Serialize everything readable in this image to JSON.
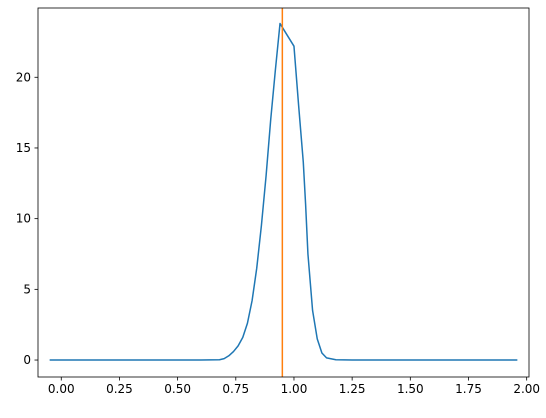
{
  "chart_data": {
    "type": "line",
    "title": "",
    "xlabel": "",
    "ylabel": "",
    "xlim": [
      -0.1,
      2.01
    ],
    "ylim": [
      -1.2,
      24.9
    ],
    "grid": false,
    "legend": "none",
    "x_ticks": [
      0.0,
      0.25,
      0.5,
      0.75,
      1.0,
      1.25,
      1.5,
      1.75,
      2.0
    ],
    "x_tick_labels": [
      "0.00",
      "0.25",
      "0.50",
      "0.75",
      "1.00",
      "1.25",
      "1.50",
      "1.75",
      "2.00"
    ],
    "y_ticks": [
      0,
      5,
      10,
      15,
      20
    ],
    "y_tick_labels": [
      "0",
      "5",
      "10",
      "15",
      "20"
    ],
    "series": [
      {
        "color": "#1f77b4",
        "x": [
          -0.05,
          0.0,
          0.25,
          0.5,
          0.6,
          0.68,
          0.7,
          0.72,
          0.74,
          0.76,
          0.78,
          0.8,
          0.82,
          0.84,
          0.86,
          0.88,
          0.9,
          0.92,
          0.94,
          1.0,
          1.02,
          1.04,
          1.05,
          1.06,
          1.08,
          1.1,
          1.12,
          1.14,
          1.18,
          1.25,
          1.5,
          1.75,
          1.96
        ],
        "y": [
          0,
          0,
          0,
          0,
          0,
          0.02,
          0.1,
          0.3,
          0.6,
          1.0,
          1.6,
          2.6,
          4.2,
          6.5,
          9.5,
          13.0,
          17.0,
          20.5,
          23.8,
          22.2,
          18.0,
          14.0,
          11.0,
          7.5,
          3.5,
          1.5,
          0.5,
          0.15,
          0.02,
          0,
          0,
          0,
          0
        ]
      }
    ],
    "vlines": [
      {
        "x": 0.95,
        "color": "#ff7f0e"
      }
    ]
  }
}
